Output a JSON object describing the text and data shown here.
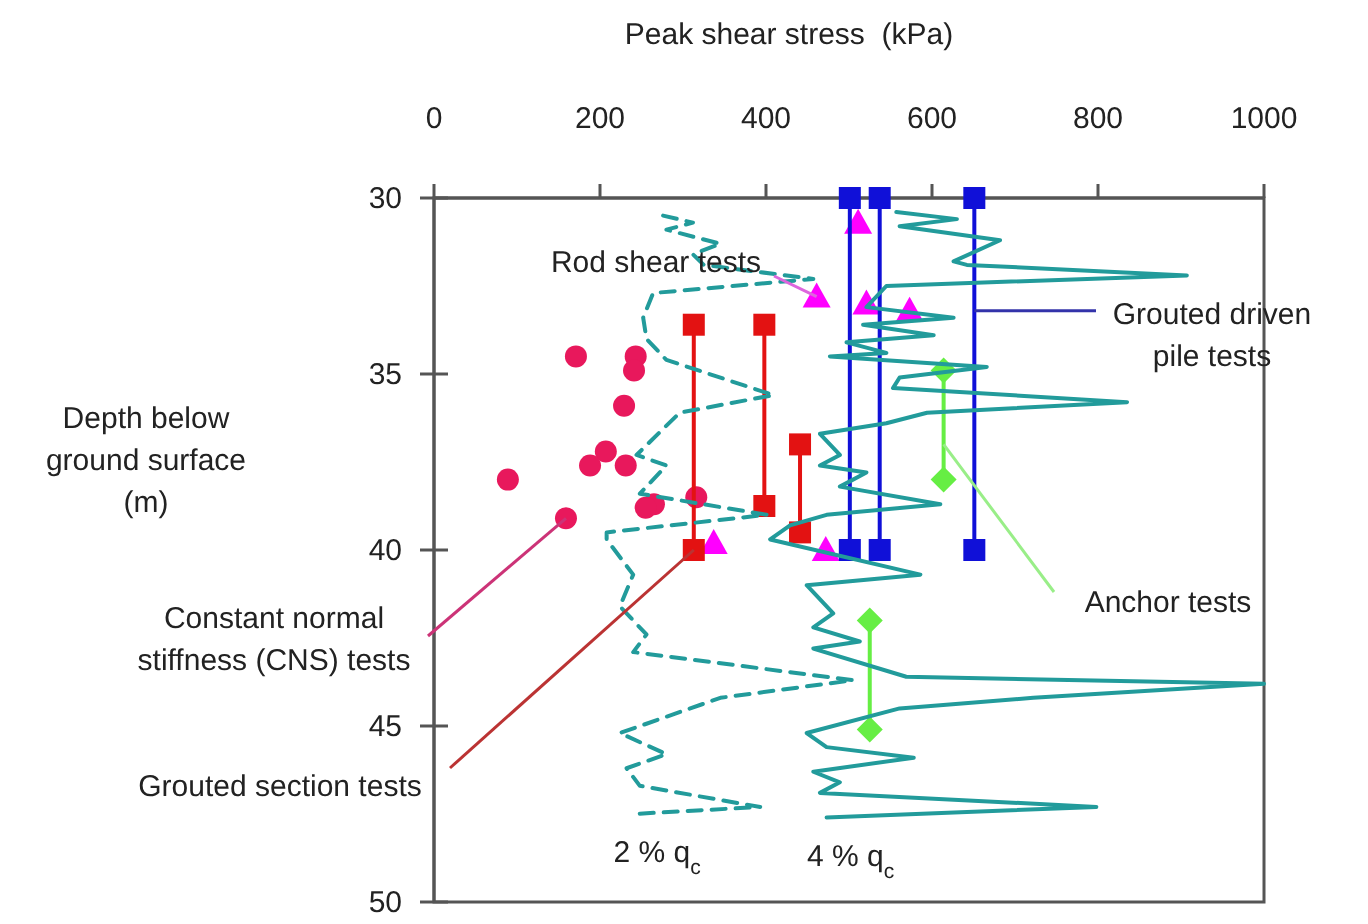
{
  "chart_data": {
    "type": "line",
    "xlabel": "Peak shear stress  (kPa)",
    "ylabel": "Depth below ground surface (m)",
    "xlim": [
      0,
      1000
    ],
    "xticks": [
      0,
      200,
      400,
      600,
      800,
      1000
    ],
    "ylim": [
      50,
      30
    ],
    "yticks": [
      30,
      35,
      40,
      45,
      50
    ],
    "grid": false,
    "legend": false,
    "series": [
      {
        "type": "scatter",
        "marker": "circle",
        "color": "#e8185c",
        "x": [
          171,
          243,
          241,
          229,
          207,
          188,
          231,
          89,
          265,
          255,
          316,
          159
        ],
        "values": [
          34.5,
          34.5,
          34.9,
          35.9,
          37.2,
          37.6,
          37.6,
          38.0,
          38.7,
          38.8,
          38.5,
          39.1
        ]
      },
      {
        "type": "scatter",
        "marker": "triangle",
        "color": "#ff00ff",
        "x": [
          461,
          511,
          521,
          573,
          337,
          472
        ],
        "values": [
          32.8,
          30.7,
          33.0,
          33.2,
          39.8,
          40.0
        ]
      },
      {
        "type": "line",
        "marker": "square",
        "color": "#e31212",
        "x": [
          313,
          313
        ],
        "values": [
          33.6,
          40
        ]
      },
      {
        "type": "line",
        "marker": "square",
        "color": "#e31212",
        "x": [
          398,
          398
        ],
        "values": [
          33.6,
          38.75
        ]
      },
      {
        "type": "line",
        "marker": "square",
        "color": "#e31212",
        "x": [
          441,
          441
        ],
        "values": [
          37.0,
          39.5
        ]
      },
      {
        "type": "line",
        "marker": "square",
        "color": "#1010d8",
        "x": [
          501,
          501
        ],
        "values": [
          30,
          40
        ]
      },
      {
        "type": "line",
        "marker": "square",
        "color": "#1010d8",
        "x": [
          537,
          537
        ],
        "values": [
          30,
          40
        ]
      },
      {
        "type": "line",
        "marker": "square",
        "color": "#1010d8",
        "x": [
          651,
          651
        ],
        "values": [
          30,
          40
        ]
      },
      {
        "type": "line",
        "marker": "diamond",
        "color": "#66ee44",
        "x": [
          614,
          614
        ],
        "values": [
          34.9,
          38.0
        ]
      },
      {
        "type": "line",
        "marker": "diamond",
        "color": "#66ee44",
        "x": [
          525,
          525
        ],
        "values": [
          42.0,
          45.1
        ]
      },
      {
        "type": "line",
        "name": "2 % q$_{c}$",
        "marker": "none",
        "line_style": "dashed",
        "color": "#229b9b",
        "x": [
          276,
          312,
          280,
          345,
          312,
          325,
          457,
          264,
          252,
          256,
          280,
          409,
          296,
          244,
          280,
          248,
          401,
          208,
          208,
          240,
          224,
          256,
          240,
          505,
          345,
          224,
          280,
          232,
          248,
          393,
          240
        ],
        "values": [
          30.5,
          30.7,
          30.9,
          31.3,
          31.6,
          31.9,
          32.3,
          32.7,
          33.4,
          34.0,
          34.6,
          35.6,
          36.1,
          37.3,
          37.6,
          38.4,
          39.0,
          39.5,
          39.7,
          40.7,
          41.6,
          42.4,
          42.9,
          43.7,
          44.2,
          45.2,
          45.8,
          46.2,
          46.7,
          47.3,
          47.5
        ]
      },
      {
        "type": "line",
        "name": "4 % q$_{c}$",
        "marker": "none",
        "line_style": "solid",
        "color": "#229b9b",
        "x": [
          557,
          630,
          561,
          682,
          626,
          642,
          907,
          545,
          521,
          626,
          517,
          602,
          497,
          545,
          477,
          666,
          561,
          553,
          835,
          594,
          545,
          465,
          489,
          465,
          521,
          489,
          610,
          473,
          429,
          405,
          586,
          449,
          481,
          457,
          513,
          457,
          569,
          1000,
          722,
          561,
          449,
          473,
          578,
          457,
          489,
          465,
          798,
          473
        ],
        "values": [
          30.4,
          30.6,
          30.8,
          31.2,
          31.8,
          31.9,
          32.2,
          32.5,
          33.1,
          33.4,
          33.6,
          33.9,
          34.1,
          34.4,
          34.5,
          34.8,
          35.1,
          35.4,
          35.8,
          36.1,
          36.4,
          36.7,
          37.3,
          37.6,
          37.8,
          38.2,
          38.7,
          39.0,
          39.3,
          39.7,
          40.7,
          41.0,
          41.8,
          42.2,
          42.6,
          42.8,
          43.6,
          43.8,
          44.2,
          44.5,
          45.2,
          45.6,
          45.9,
          46.3,
          46.6,
          46.9,
          47.3,
          47.6
        ]
      }
    ],
    "annotations": [
      {
        "text": "Rod shear tests",
        "x": 461,
        "y": 32.8
      },
      {
        "text": "Grouted driven pile tests",
        "x": 651,
        "y": 33.2
      },
      {
        "text": "Constant normal stiffness (CNS) tests",
        "x": 159,
        "y": 39.1
      },
      {
        "text": "Grouted section tests",
        "x": 313,
        "y": 40
      },
      {
        "text": "Anchor tests",
        "x": 614,
        "y": 37
      }
    ]
  }
}
